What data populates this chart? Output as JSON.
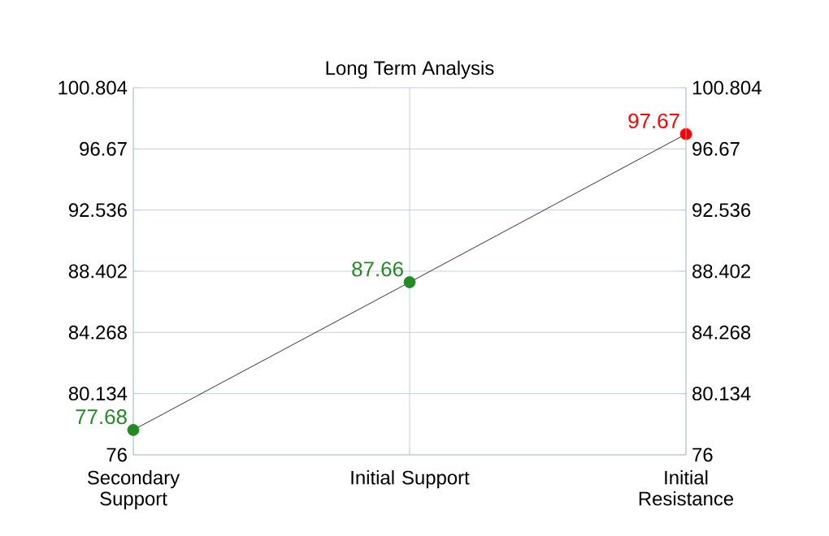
{
  "chart_data": {
    "type": "line",
    "title": "Long Term Analysis",
    "categories": [
      "Secondary Support",
      "Initial Support",
      "Initial Resistance"
    ],
    "values": [
      77.68,
      87.66,
      97.67
    ],
    "color": "#000000",
    "colors": [
      "#228b22",
      "#228b22",
      "#ff0000"
    ],
    "marker": "circle",
    "data_labels": true,
    "grid": true,
    "ylim": [
      76,
      100.804
    ],
    "yticks": [
      76,
      80.134,
      84.268,
      88.402,
      92.536,
      96.67,
      100.804
    ],
    "y2lim": [
      76,
      100.804
    ],
    "y2ticks": [
      76,
      80.134,
      84.268,
      88.402,
      92.536,
      96.67,
      100.804
    ]
  }
}
